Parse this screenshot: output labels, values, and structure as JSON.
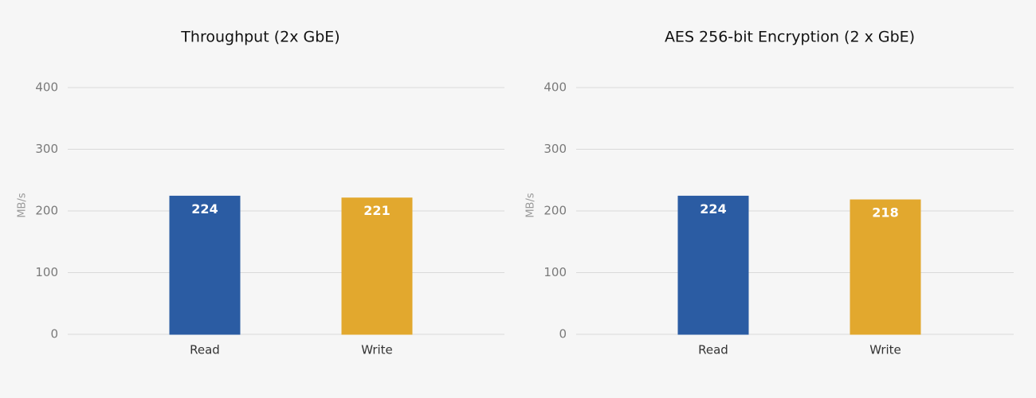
{
  "chart_data": [
    {
      "type": "bar",
      "title": "Throughput (2x GbE)",
      "y_label": "MB/s",
      "categories": [
        "Read",
        "Write"
      ],
      "values": [
        224,
        221
      ],
      "colors": [
        "#2b5ca3",
        "#e2a82e"
      ],
      "ylim": [
        0,
        400
      ],
      "yticks": [
        0,
        100,
        200,
        300,
        400
      ],
      "grid": true
    },
    {
      "type": "bar",
      "title": "AES 256-bit Encryption (2 x GbE)",
      "y_label": "MB/s",
      "categories": [
        "Read",
        "Write"
      ],
      "values": [
        224,
        218
      ],
      "colors": [
        "#2b5ca3",
        "#e2a82e"
      ],
      "ylim": [
        0,
        400
      ],
      "yticks": [
        0,
        100,
        200,
        300,
        400
      ],
      "grid": true
    }
  ]
}
